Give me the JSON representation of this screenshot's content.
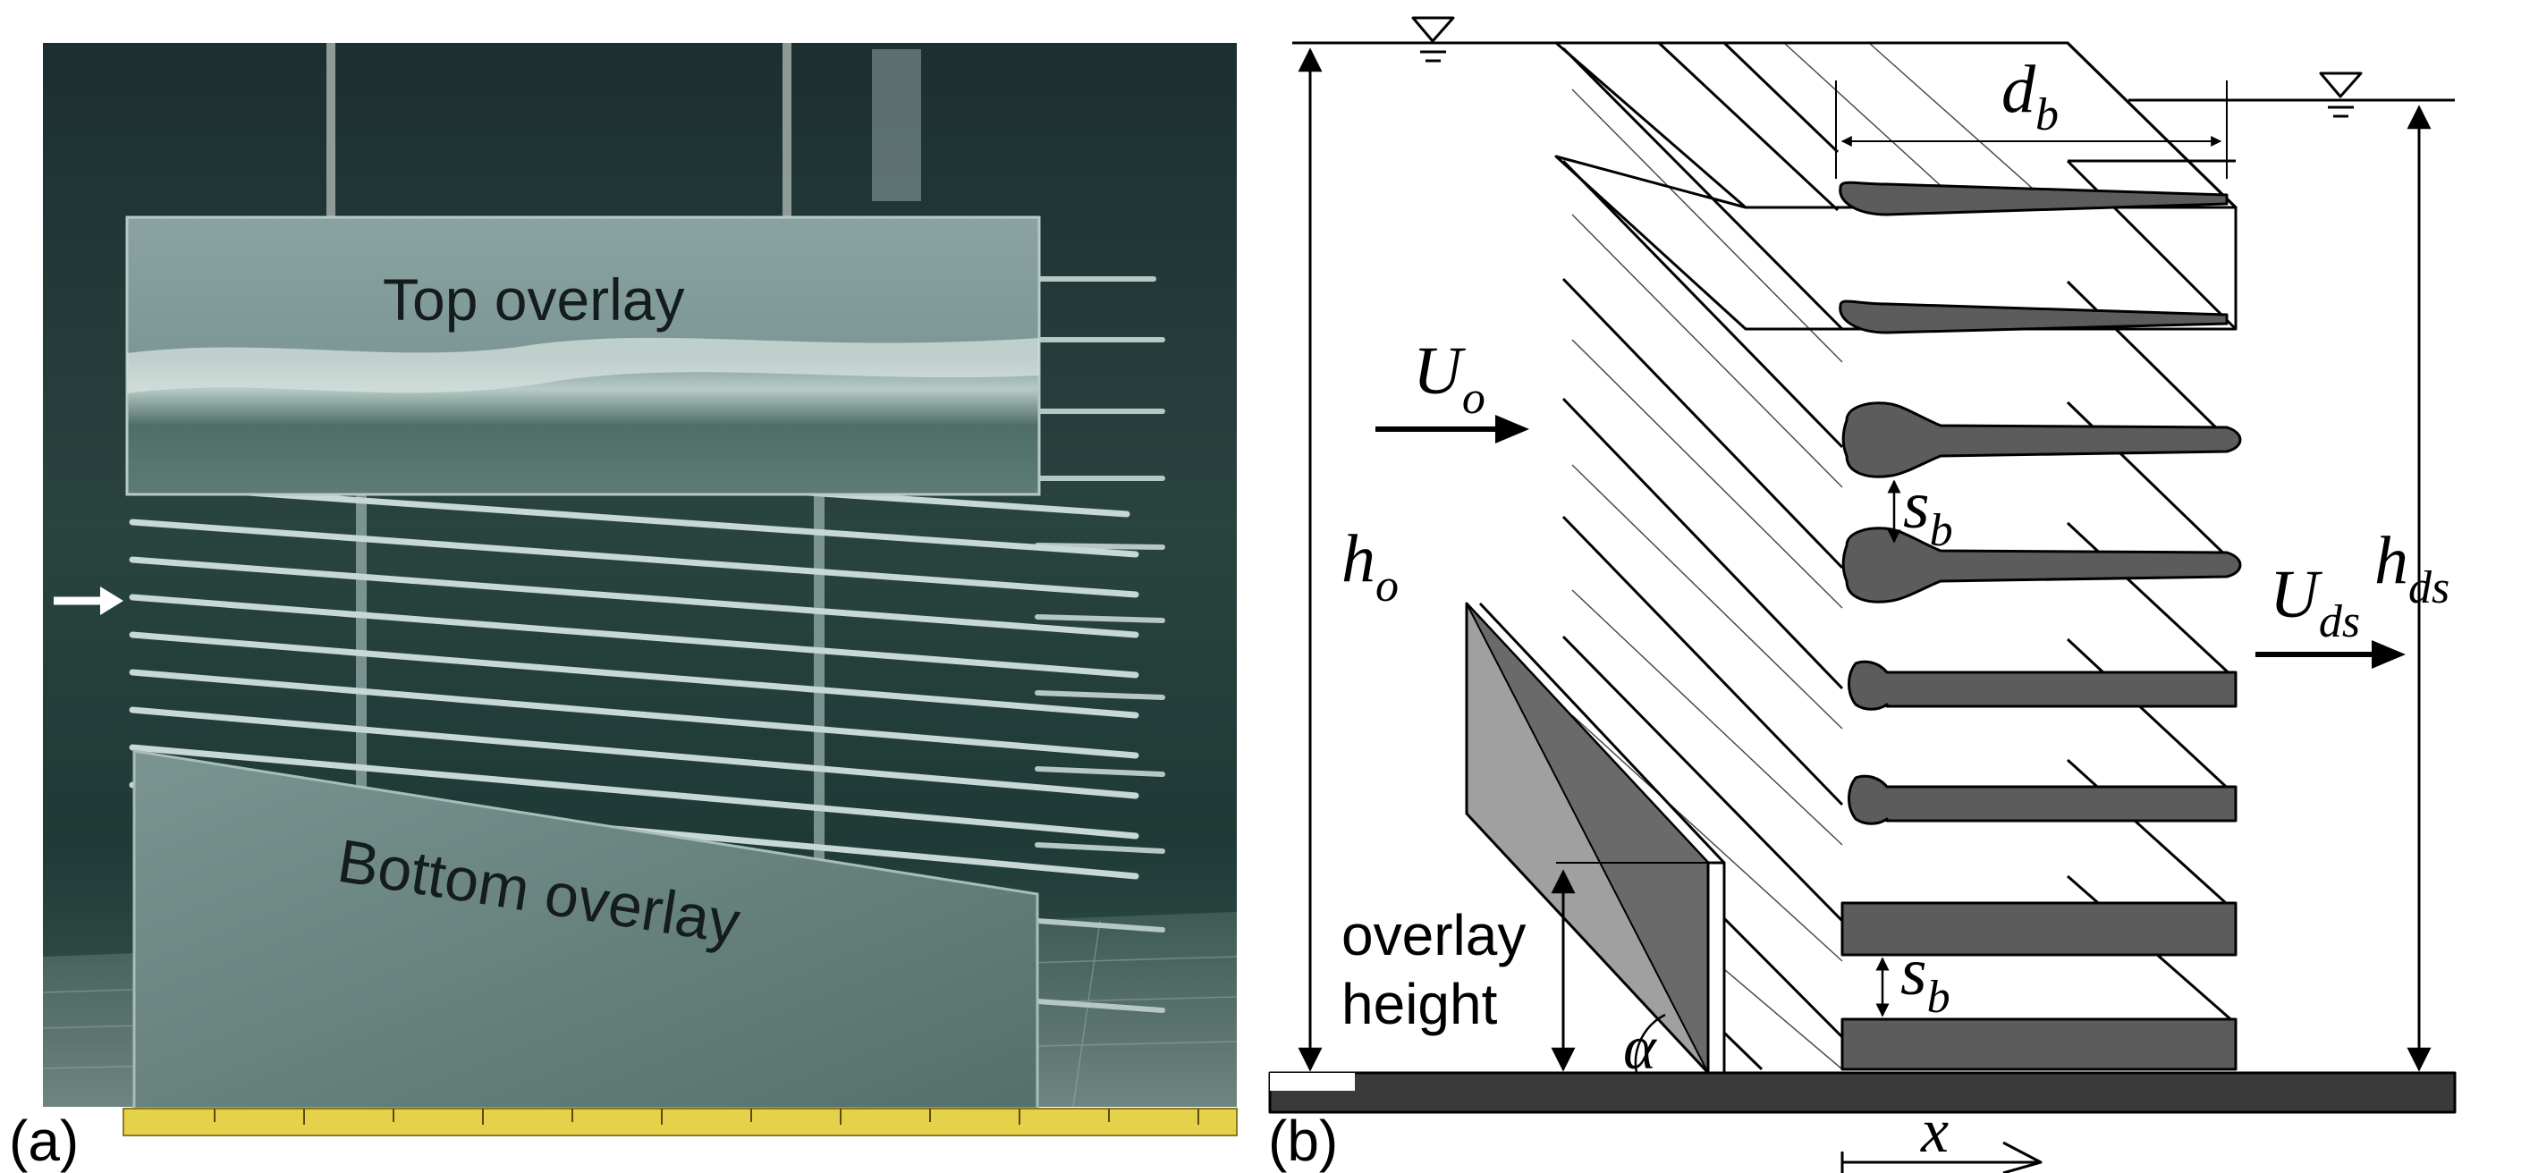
{
  "panel_a": {
    "label": "(a)",
    "top_label": "Top overlay",
    "bottom_label": "Bottom overlay",
    "colors": {
      "water_dark": "#18302d",
      "water_mid": "#2e5650",
      "plate": "#6f8c88",
      "ruler": "#e8d44a"
    },
    "arrow_icon": "right-arrow-icon",
    "bar_count": 10
  },
  "panel_b": {
    "label": "(b)",
    "h_o": {
      "main": "h",
      "sub": "o"
    },
    "h_ds": {
      "main": "h",
      "sub": "ds"
    },
    "U_o": {
      "main": "U",
      "sub": "o"
    },
    "U_ds": {
      "main": "U",
      "sub": "ds"
    },
    "d_b": {
      "main": "d",
      "sub": "b"
    },
    "s_b_upper": {
      "main": "s",
      "sub": "b"
    },
    "s_b_lower": {
      "main": "s",
      "sub": "b"
    },
    "x": "x",
    "alpha": "α",
    "overlay_height": [
      "overlay",
      "height"
    ],
    "water_surface_icon": "water-level-symbol-icon",
    "colors": {
      "bar_fill": "#5c5c5c",
      "overlay_dark": "#6a6a6a",
      "overlay_light": "#a0a0a0",
      "floor": "#3a3a3a"
    }
  }
}
